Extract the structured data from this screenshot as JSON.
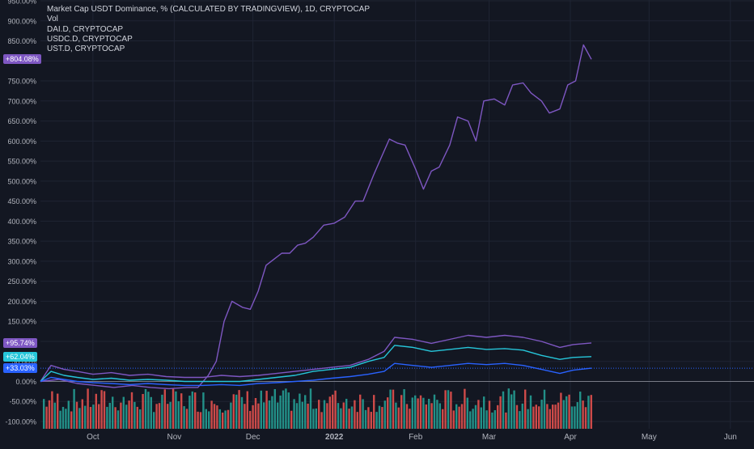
{
  "legend": {
    "main": "Market Cap USDT Dominance, % (CALCULATED BY TRADINGVIEW), 1D, CRYPTOCAP",
    "vol": "Vol",
    "dai": "DAI.D, CRYPTOCAP",
    "usdc": "USDC.D, CRYPTOCAP",
    "ust": "UST.D, CRYPTOCAP"
  },
  "badges": {
    "main": "+804.08%",
    "dai": "+95.74%",
    "usdc": "+62.04%",
    "ust": "+33.03%"
  },
  "colors": {
    "background": "#131722",
    "grid": "#1f2433",
    "text": "#b2b5be",
    "main": "#7e57c2",
    "dai": "#7e57c2",
    "usdc": "#26c6da",
    "ust": "#2962ff",
    "vol_up": "#26a69a",
    "vol_down": "#ef5350",
    "zero_line": "#787b86"
  },
  "chart_data": {
    "type": "line",
    "ylim": [
      -110,
      950
    ],
    "y_ticks": [
      "950.00%",
      "900.00%",
      "850.00%",
      "800.00%",
      "750.00%",
      "700.00%",
      "650.00%",
      "600.00%",
      "550.00%",
      "500.00%",
      "450.00%",
      "400.00%",
      "350.00%",
      "300.00%",
      "250.00%",
      "200.00%",
      "150.00%",
      "100.00%",
      "50.00%",
      "0.00%",
      "-50.00%",
      "-100.00%"
    ],
    "x_ticks": [
      "Oct",
      "Nov",
      "Dec",
      "2022",
      "Feb",
      "Mar",
      "Apr",
      "May",
      "Jun"
    ],
    "x_start": "2021-09-11",
    "x_end": "2022-06-10",
    "x_tick_dates": [
      "2021-10-01",
      "2021-11-01",
      "2021-12-01",
      "2022-01-01",
      "2022-02-01",
      "2022-03-01",
      "2022-04-01",
      "2022-05-01",
      "2022-06-01"
    ],
    "series": [
      {
        "name": "Market Cap USDT Dominance, % (CALCULATED BY TRADINGVIEW), 1D, CRYPTOCAP",
        "points": [
          [
            "2021-09-11",
            0
          ],
          [
            "2021-09-18",
            5
          ],
          [
            "2021-09-25",
            -5
          ],
          [
            "2021-10-02",
            -10
          ],
          [
            "2021-10-09",
            -15
          ],
          [
            "2021-10-16",
            -10
          ],
          [
            "2021-10-23",
            -15
          ],
          [
            "2021-10-30",
            -18
          ],
          [
            "2021-11-06",
            -15
          ],
          [
            "2021-11-10",
            -15
          ],
          [
            "2021-11-14",
            15
          ],
          [
            "2021-11-17",
            50
          ],
          [
            "2021-11-20",
            150
          ],
          [
            "2021-11-23",
            200
          ],
          [
            "2021-11-27",
            185
          ],
          [
            "2021-11-30",
            180
          ],
          [
            "2021-12-03",
            225
          ],
          [
            "2021-12-06",
            290
          ],
          [
            "2021-12-09",
            305
          ],
          [
            "2021-12-12",
            320
          ],
          [
            "2021-12-15",
            320
          ],
          [
            "2021-12-18",
            340
          ],
          [
            "2021-12-21",
            345
          ],
          [
            "2021-12-24",
            360
          ],
          [
            "2021-12-28",
            390
          ],
          [
            "2022-01-01",
            395
          ],
          [
            "2022-01-05",
            410
          ],
          [
            "2022-01-09",
            450
          ],
          [
            "2022-01-12",
            450
          ],
          [
            "2022-01-16",
            515
          ],
          [
            "2022-01-19",
            560
          ],
          [
            "2022-01-22",
            605
          ],
          [
            "2022-01-25",
            595
          ],
          [
            "2022-01-28",
            590
          ],
          [
            "2022-02-01",
            530
          ],
          [
            "2022-02-04",
            480
          ],
          [
            "2022-02-07",
            525
          ],
          [
            "2022-02-10",
            535
          ],
          [
            "2022-02-14",
            590
          ],
          [
            "2022-02-17",
            660
          ],
          [
            "2022-02-21",
            650
          ],
          [
            "2022-02-24",
            600
          ],
          [
            "2022-02-27",
            700
          ],
          [
            "2022-03-03",
            705
          ],
          [
            "2022-03-07",
            690
          ],
          [
            "2022-03-10",
            740
          ],
          [
            "2022-03-14",
            745
          ],
          [
            "2022-03-17",
            720
          ],
          [
            "2022-03-21",
            700
          ],
          [
            "2022-03-24",
            670
          ],
          [
            "2022-03-28",
            680
          ],
          [
            "2022-03-31",
            740
          ],
          [
            "2022-04-03",
            750
          ],
          [
            "2022-04-06",
            840
          ],
          [
            "2022-04-09",
            804
          ]
        ]
      },
      {
        "name": "DAI.D, CRYPTOCAP",
        "points": [
          [
            "2021-09-11",
            0
          ],
          [
            "2021-09-15",
            40
          ],
          [
            "2021-09-20",
            30
          ],
          [
            "2021-09-25",
            25
          ],
          [
            "2021-10-01",
            18
          ],
          [
            "2021-10-08",
            22
          ],
          [
            "2021-10-15",
            15
          ],
          [
            "2021-10-22",
            18
          ],
          [
            "2021-10-29",
            12
          ],
          [
            "2021-11-05",
            10
          ],
          [
            "2021-11-12",
            10
          ],
          [
            "2021-11-19",
            15
          ],
          [
            "2021-11-26",
            12
          ],
          [
            "2021-12-03",
            15
          ],
          [
            "2021-12-10",
            20
          ],
          [
            "2021-12-17",
            25
          ],
          [
            "2021-12-24",
            30
          ],
          [
            "2021-12-31",
            35
          ],
          [
            "2022-01-07",
            40
          ],
          [
            "2022-01-14",
            55
          ],
          [
            "2022-01-20",
            75
          ],
          [
            "2022-01-24",
            110
          ],
          [
            "2022-01-31",
            105
          ],
          [
            "2022-02-07",
            95
          ],
          [
            "2022-02-14",
            105
          ],
          [
            "2022-02-21",
            115
          ],
          [
            "2022-02-28",
            110
          ],
          [
            "2022-03-07",
            115
          ],
          [
            "2022-03-14",
            110
          ],
          [
            "2022-03-21",
            100
          ],
          [
            "2022-03-28",
            85
          ],
          [
            "2022-04-02",
            92
          ],
          [
            "2022-04-09",
            96
          ]
        ]
      },
      {
        "name": "USDC.D, CRYPTOCAP",
        "points": [
          [
            "2021-09-11",
            0
          ],
          [
            "2021-09-15",
            25
          ],
          [
            "2021-09-20",
            15
          ],
          [
            "2021-09-25",
            10
          ],
          [
            "2021-10-01",
            5
          ],
          [
            "2021-10-08",
            8
          ],
          [
            "2021-10-15",
            3
          ],
          [
            "2021-10-22",
            5
          ],
          [
            "2021-10-29",
            3
          ],
          [
            "2021-11-05",
            0
          ],
          [
            "2021-11-12",
            0
          ],
          [
            "2021-11-19",
            0
          ],
          [
            "2021-11-26",
            0
          ],
          [
            "2021-12-03",
            5
          ],
          [
            "2021-12-10",
            10
          ],
          [
            "2021-12-17",
            15
          ],
          [
            "2021-12-24",
            25
          ],
          [
            "2021-12-31",
            30
          ],
          [
            "2022-01-07",
            35
          ],
          [
            "2022-01-14",
            50
          ],
          [
            "2022-01-20",
            60
          ],
          [
            "2022-01-24",
            90
          ],
          [
            "2022-01-31",
            85
          ],
          [
            "2022-02-07",
            75
          ],
          [
            "2022-02-14",
            80
          ],
          [
            "2022-02-21",
            85
          ],
          [
            "2022-02-28",
            80
          ],
          [
            "2022-03-07",
            82
          ],
          [
            "2022-03-14",
            78
          ],
          [
            "2022-03-21",
            65
          ],
          [
            "2022-03-28",
            55
          ],
          [
            "2022-04-02",
            60
          ],
          [
            "2022-04-09",
            62
          ]
        ]
      },
      {
        "name": "UST.D, CRYPTOCAP",
        "points": [
          [
            "2021-09-11",
            0
          ],
          [
            "2021-09-15",
            10
          ],
          [
            "2021-09-20",
            5
          ],
          [
            "2021-09-25",
            0
          ],
          [
            "2021-10-01",
            -3
          ],
          [
            "2021-10-08",
            -5
          ],
          [
            "2021-10-15",
            -8
          ],
          [
            "2021-10-22",
            -5
          ],
          [
            "2021-10-29",
            -8
          ],
          [
            "2021-11-05",
            -10
          ],
          [
            "2021-11-12",
            -10
          ],
          [
            "2021-11-19",
            -8
          ],
          [
            "2021-11-26",
            -10
          ],
          [
            "2021-12-03",
            -5
          ],
          [
            "2021-12-10",
            -3
          ],
          [
            "2021-12-17",
            0
          ],
          [
            "2021-12-24",
            3
          ],
          [
            "2021-12-31",
            8
          ],
          [
            "2022-01-07",
            12
          ],
          [
            "2022-01-14",
            18
          ],
          [
            "2022-01-20",
            25
          ],
          [
            "2022-01-24",
            45
          ],
          [
            "2022-01-31",
            40
          ],
          [
            "2022-02-07",
            35
          ],
          [
            "2022-02-14",
            40
          ],
          [
            "2022-02-21",
            45
          ],
          [
            "2022-02-28",
            42
          ],
          [
            "2022-03-07",
            45
          ],
          [
            "2022-03-14",
            40
          ],
          [
            "2022-03-21",
            30
          ],
          [
            "2022-03-28",
            20
          ],
          [
            "2022-04-02",
            28
          ],
          [
            "2022-04-09",
            33
          ]
        ]
      }
    ]
  }
}
